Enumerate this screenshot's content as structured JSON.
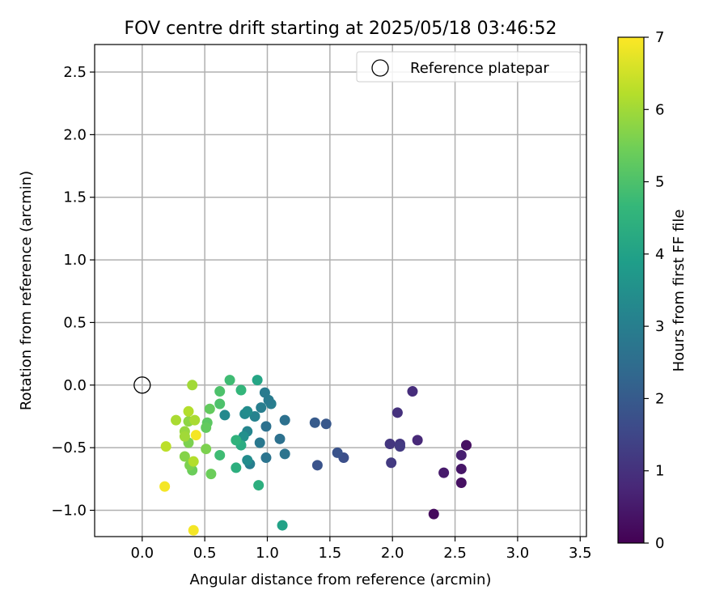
{
  "chart_data": {
    "type": "scatter",
    "title": "FOV centre drift starting at 2025/05/18 03:46:52",
    "xlabel": "Angular distance from reference (arcmin)",
    "ylabel": "Rotation from reference (arcmin)",
    "xlim": [
      -0.38,
      3.55
    ],
    "ylim": [
      -1.21,
      2.72
    ],
    "xticks": [
      0.0,
      0.5,
      1.0,
      1.5,
      2.0,
      2.5,
      3.0,
      3.5
    ],
    "xtick_labels": [
      "0.0",
      "0.5",
      "1.0",
      "1.5",
      "2.0",
      "2.5",
      "3.0",
      "3.5"
    ],
    "yticks": [
      -1.0,
      -0.5,
      0.0,
      0.5,
      1.0,
      1.5,
      2.0,
      2.5
    ],
    "ytick_labels": [
      "−1.0",
      "−0.5",
      "0.0",
      "0.5",
      "1.0",
      "1.5",
      "2.0",
      "2.5"
    ],
    "grid": true,
    "legend": {
      "placement": "upper-right",
      "entries": [
        {
          "label": "Reference platepar",
          "marker": "open-circle"
        }
      ]
    },
    "reference_point": {
      "x": 0.0,
      "y": 0.0
    },
    "colorbar": {
      "label": "Hours from first FF file",
      "min": 0,
      "max": 7,
      "ticks": [
        0,
        1,
        2,
        3,
        4,
        5,
        6,
        7
      ],
      "tick_labels": [
        "0",
        "1",
        "2",
        "3",
        "4",
        "5",
        "6",
        "7"
      ],
      "colormap": "viridis",
      "colormap_stops": [
        "#440154",
        "#482878",
        "#3e4989",
        "#31688e",
        "#26828e",
        "#1f9e89",
        "#35b779",
        "#6ece58",
        "#b5de2b",
        "#fde725"
      ]
    },
    "series": [
      {
        "points": [
          {
            "x": 2.33,
            "y": -1.03,
            "h": 0.2
          },
          {
            "x": 2.55,
            "y": -0.78,
            "h": 0.3
          },
          {
            "x": 2.55,
            "y": -0.67,
            "h": 0.4
          },
          {
            "x": 2.41,
            "y": -0.7,
            "h": 0.5
          },
          {
            "x": 2.55,
            "y": -0.56,
            "h": 0.6
          },
          {
            "x": 2.59,
            "y": -0.48,
            "h": 0.3
          },
          {
            "x": 2.2,
            "y": -0.44,
            "h": 0.8
          },
          {
            "x": 2.16,
            "y": -0.05,
            "h": 0.9
          },
          {
            "x": 2.04,
            "y": -0.22,
            "h": 1.0
          },
          {
            "x": 2.06,
            "y": -0.47,
            "h": 1.1
          },
          {
            "x": 2.06,
            "y": -0.49,
            "h": 1.2
          },
          {
            "x": 1.98,
            "y": -0.47,
            "h": 1.1
          },
          {
            "x": 1.99,
            "y": -0.62,
            "h": 1.2
          },
          {
            "x": 1.61,
            "y": -0.58,
            "h": 1.7
          },
          {
            "x": 1.56,
            "y": -0.54,
            "h": 1.8
          },
          {
            "x": 1.4,
            "y": -0.64,
            "h": 1.8
          },
          {
            "x": 1.38,
            "y": -0.3,
            "h": 2.0
          },
          {
            "x": 1.47,
            "y": -0.31,
            "h": 1.9
          },
          {
            "x": 1.14,
            "y": -0.28,
            "h": 2.6
          },
          {
            "x": 1.14,
            "y": -0.55,
            "h": 2.7
          },
          {
            "x": 1.1,
            "y": -0.43,
            "h": 2.6
          },
          {
            "x": 0.99,
            "y": -0.58,
            "h": 2.7
          },
          {
            "x": 0.99,
            "y": -0.33,
            "h": 2.6
          },
          {
            "x": 1.03,
            "y": -0.15,
            "h": 3.0
          },
          {
            "x": 1.01,
            "y": -0.12,
            "h": 2.9
          },
          {
            "x": 0.98,
            "y": -0.06,
            "h": 2.9
          },
          {
            "x": 0.95,
            "y": -0.18,
            "h": 3.0
          },
          {
            "x": 0.94,
            "y": -0.46,
            "h": 2.8
          },
          {
            "x": 0.9,
            "y": -0.25,
            "h": 3.1
          },
          {
            "x": 0.86,
            "y": -0.63,
            "h": 3.0
          },
          {
            "x": 0.84,
            "y": -0.37,
            "h": 3.2
          },
          {
            "x": 0.82,
            "y": -0.23,
            "h": 3.3
          },
          {
            "x": 0.84,
            "y": -0.6,
            "h": 3.4
          },
          {
            "x": 0.84,
            "y": -0.21,
            "h": 3.4
          },
          {
            "x": 0.81,
            "y": -0.41,
            "h": 3.5
          },
          {
            "x": 0.92,
            "y": 0.04,
            "h": 4.1
          },
          {
            "x": 0.66,
            "y": -0.24,
            "h": 3.3
          },
          {
            "x": 0.79,
            "y": -0.48,
            "h": 4.3
          },
          {
            "x": 0.75,
            "y": -0.44,
            "h": 4.5
          },
          {
            "x": 0.75,
            "y": -0.66,
            "h": 4.4
          },
          {
            "x": 0.79,
            "y": -0.04,
            "h": 4.6
          },
          {
            "x": 0.93,
            "y": -0.8,
            "h": 4.4
          },
          {
            "x": 1.12,
            "y": -1.12,
            "h": 4.0
          },
          {
            "x": 0.7,
            "y": 0.04,
            "h": 4.8
          },
          {
            "x": 0.62,
            "y": -0.05,
            "h": 5.0
          },
          {
            "x": 0.62,
            "y": -0.15,
            "h": 5.0
          },
          {
            "x": 0.62,
            "y": -0.56,
            "h": 4.8
          },
          {
            "x": 0.54,
            "y": -0.19,
            "h": 5.3
          },
          {
            "x": 0.52,
            "y": -0.3,
            "h": 5.2
          },
          {
            "x": 0.51,
            "y": -0.34,
            "h": 5.3
          },
          {
            "x": 0.51,
            "y": -0.51,
            "h": 5.6
          },
          {
            "x": 0.55,
            "y": -0.71,
            "h": 5.4
          },
          {
            "x": 0.4,
            "y": -0.68,
            "h": 5.4
          },
          {
            "x": 0.38,
            "y": -0.64,
            "h": 5.6
          },
          {
            "x": 0.34,
            "y": -0.57,
            "h": 5.7
          },
          {
            "x": 0.41,
            "y": -0.61,
            "h": 6.2
          },
          {
            "x": 0.37,
            "y": -0.46,
            "h": 5.6
          },
          {
            "x": 0.37,
            "y": -0.29,
            "h": 5.8
          },
          {
            "x": 0.34,
            "y": -0.37,
            "h": 5.9
          },
          {
            "x": 0.34,
            "y": -0.41,
            "h": 6.0
          },
          {
            "x": 0.42,
            "y": -0.28,
            "h": 6.1
          },
          {
            "x": 0.37,
            "y": -0.21,
            "h": 6.2
          },
          {
            "x": 0.27,
            "y": -0.28,
            "h": 6.1
          },
          {
            "x": 0.4,
            "y": 0.0,
            "h": 6.0
          },
          {
            "x": 0.19,
            "y": -0.49,
            "h": 6.3
          },
          {
            "x": 0.43,
            "y": -0.4,
            "h": 6.9
          },
          {
            "x": 0.18,
            "y": -0.81,
            "h": 6.9
          },
          {
            "x": 0.41,
            "y": -1.16,
            "h": 6.9
          }
        ]
      }
    ]
  }
}
